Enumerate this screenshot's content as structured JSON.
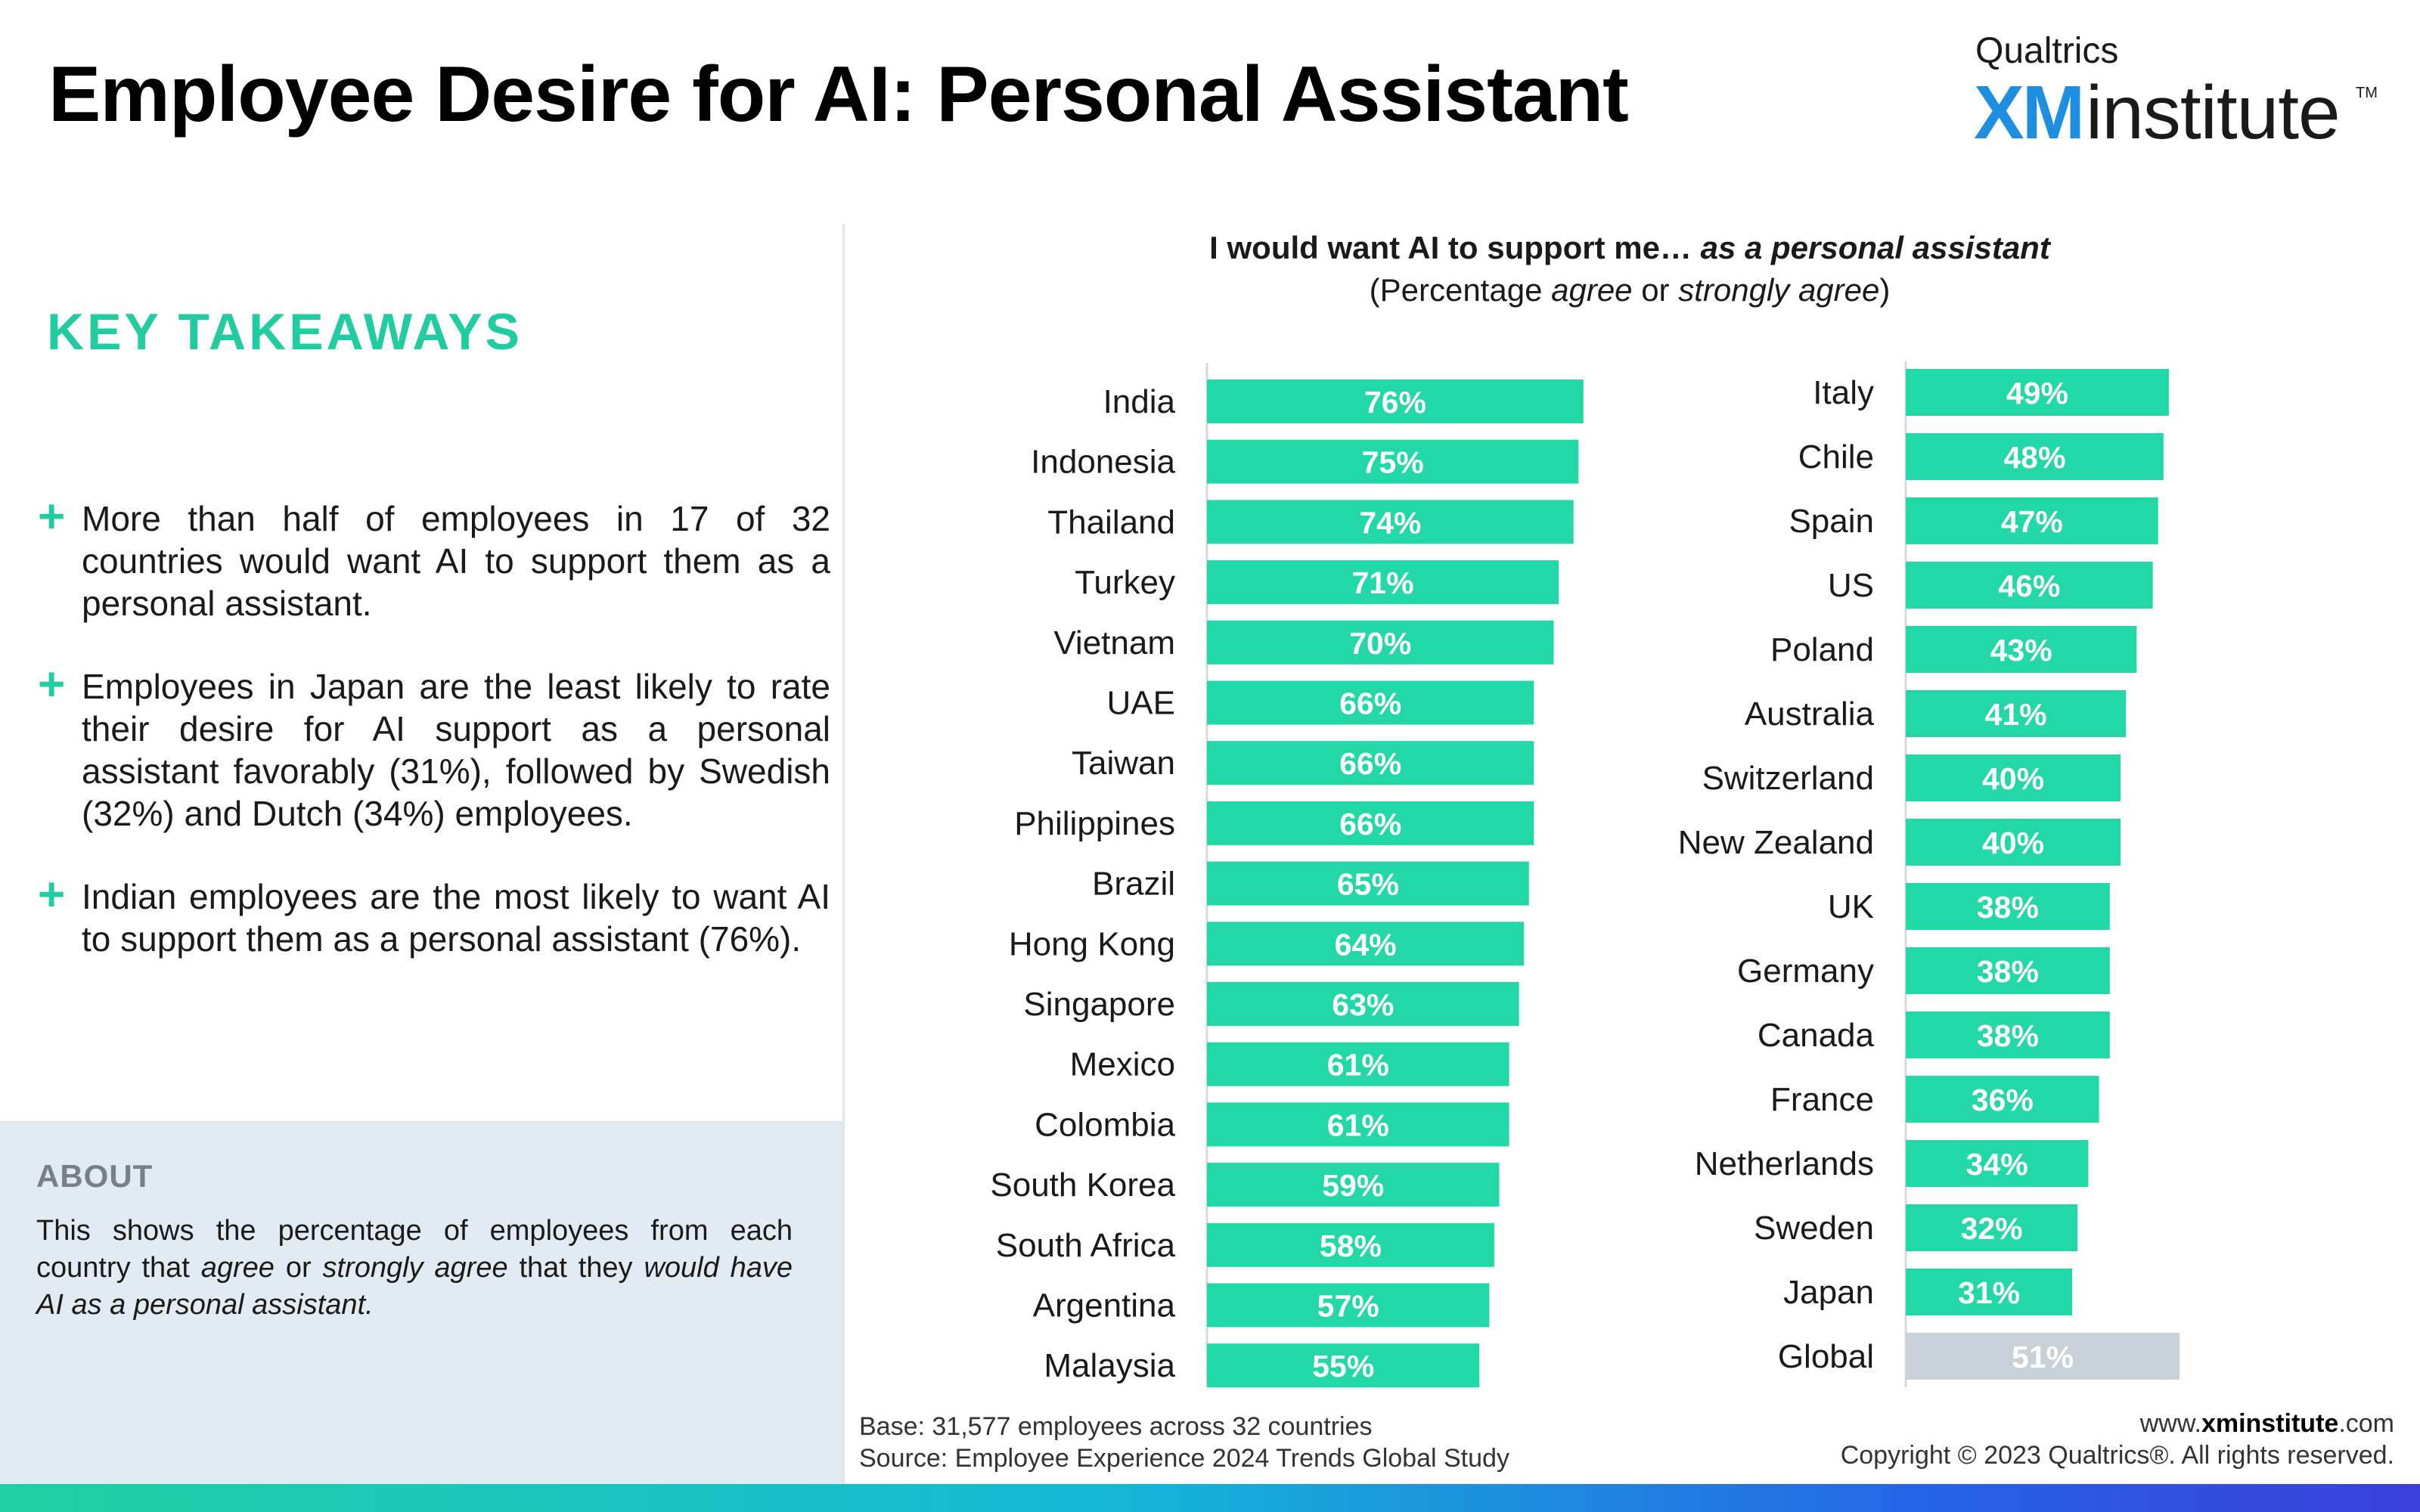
{
  "header": {
    "title": "Employee Desire for AI: Personal Assistant",
    "logo_brand": "Qualtrics",
    "logo_xm": "XM",
    "logo_institute": "institute",
    "logo_tm": "TM"
  },
  "takeaways": {
    "heading": "KEY TAKEAWAYS",
    "items": [
      "More than half of employees in 17 of 32 countries would want AI to support them as a personal assistant.",
      "Employees in Japan are the least likely to rate their desire for AI support as a personal assistant favorably (31%), followed by Swedish (32%) and Dutch (34%) employees.",
      "Indian employees are the most likely to want AI to support them as a personal assistant (76%)."
    ]
  },
  "about": {
    "heading": "ABOUT",
    "text_1": "This shows the percentage of employees from each country that ",
    "text_em1": "agree",
    "text_2": " or ",
    "text_em2": "strongly agree",
    "text_3": " that they ",
    "text_em3": "would have AI as a personal assistant."
  },
  "footer": {
    "base": "Base: 31,577 employees across 32 countries",
    "source": "Source: Employee Experience 2024 Trends Global Study",
    "url_prefix": "www.",
    "url_bold": "xminstitute",
    "url_suffix": ".com",
    "copyright": "Copyright © 2023 Qualtrics®. All rights reserved."
  },
  "chart_data": {
    "type": "bar",
    "orientation": "horizontal",
    "title_1": "I would want AI to support me… ",
    "title_em": "as a personal assistant",
    "subtitle_1": "(Percentage ",
    "subtitle_em1": "agree",
    "subtitle_2": " or ",
    "subtitle_em2": "strongly agree",
    "subtitle_3": ")",
    "value_suffix": "%",
    "colors": {
      "bar": "#22d8a6",
      "global_bar": "#c9d1d8",
      "label": "#ffffff"
    },
    "panels": [
      {
        "categories": [
          "India",
          "Indonesia",
          "Thailand",
          "Turkey",
          "Vietnam",
          "UAE",
          "Taiwan",
          "Philippines",
          "Brazil",
          "Hong Kong",
          "Singapore",
          "Mexico",
          "Colombia",
          "South Korea",
          "South Africa",
          "Argentina",
          "Malaysia"
        ],
        "values": [
          76,
          75,
          74,
          71,
          70,
          66,
          66,
          66,
          65,
          64,
          63,
          61,
          61,
          59,
          58,
          57,
          55
        ]
      },
      {
        "categories": [
          "Italy",
          "Chile",
          "Spain",
          "US",
          "Poland",
          "Australia",
          "Switzerland",
          "New Zealand",
          "UK",
          "Germany",
          "Canada",
          "France",
          "Netherlands",
          "Sweden",
          "Japan",
          "Global"
        ],
        "values": [
          49,
          48,
          47,
          46,
          43,
          41,
          40,
          40,
          38,
          38,
          38,
          36,
          34,
          32,
          31,
          51
        ],
        "highlight": "Global"
      }
    ],
    "grid": false,
    "legend": "none"
  }
}
